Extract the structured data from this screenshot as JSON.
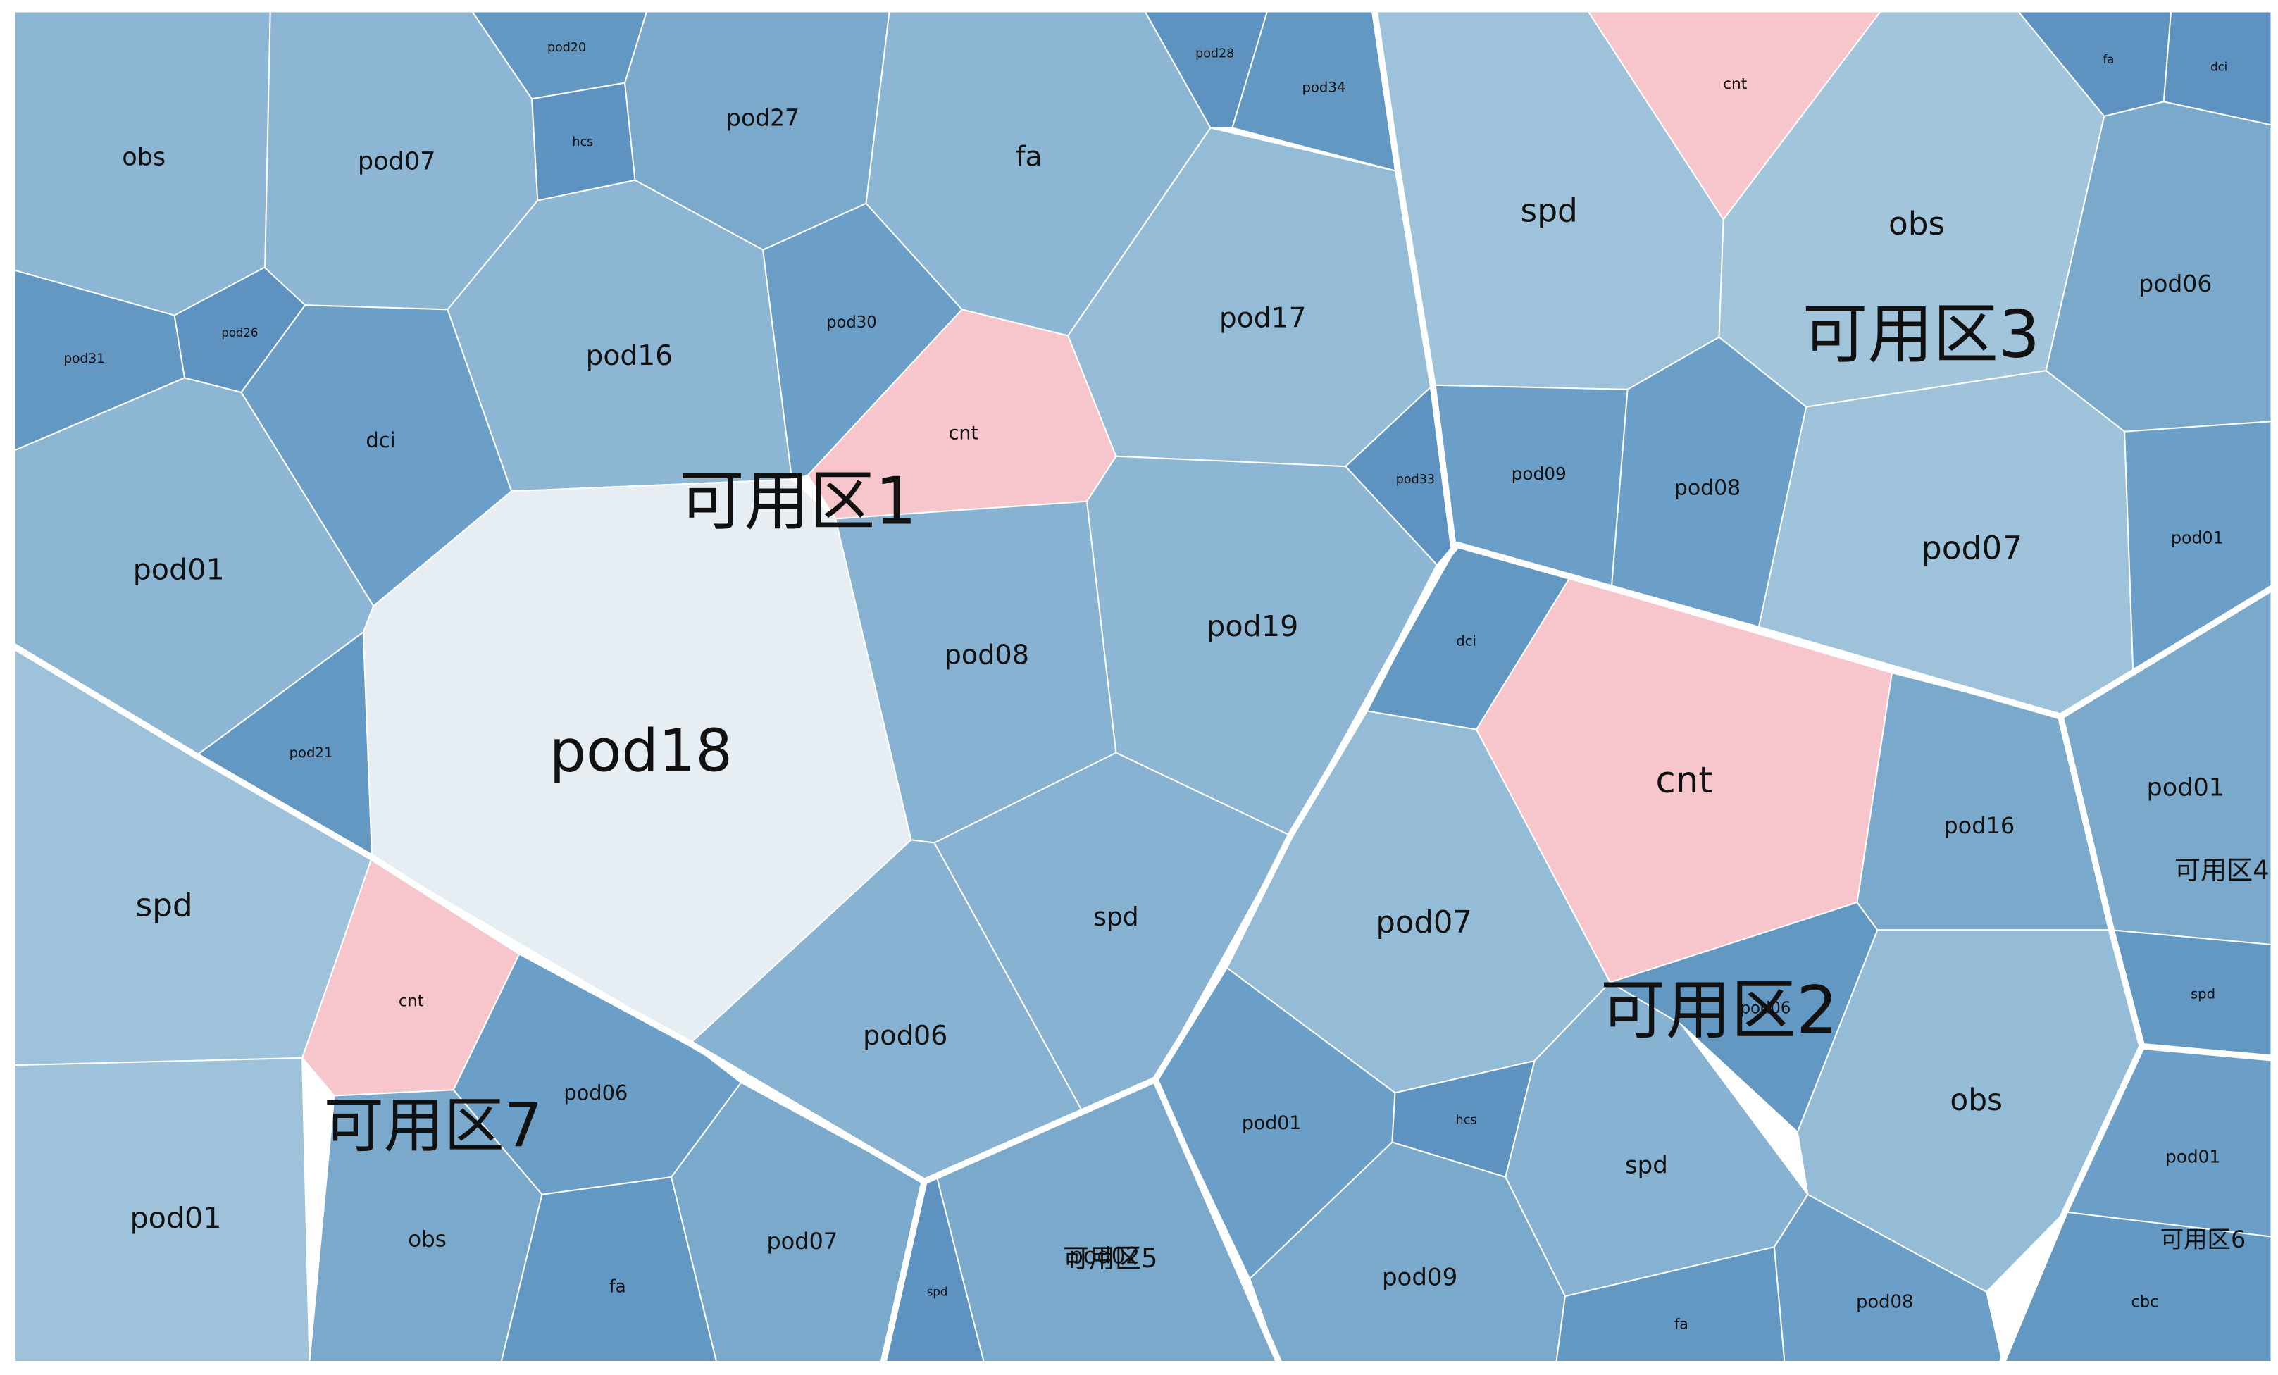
{
  "colors": {
    "alert": "#f7c6cd",
    "highlight": "#e6edf3",
    "blue_light": "#9dc2d9",
    "blue_mid": "#7aa9cb",
    "blue_dark": "#6398c3",
    "border": "#ffffff"
  },
  "zones": [
    {
      "name": "可用区1"
    },
    {
      "name": "可用区2"
    },
    {
      "name": "可用区3"
    },
    {
      "name": "可用区4"
    },
    {
      "name": "可用区5"
    },
    {
      "name": "可用区6"
    },
    {
      "name": "可用区7"
    }
  ],
  "cells": [
    {
      "label": "obs",
      "zone": "可用区1",
      "color": "#8db6d4"
    },
    {
      "label": "pod07",
      "zone": "可用区1",
      "color": "#8db6d4"
    },
    {
      "label": "pod20",
      "zone": "可用区1",
      "color": "#6398c3"
    },
    {
      "label": "hcs",
      "zone": "可用区1",
      "color": "#5e93c1"
    },
    {
      "label": "pod27",
      "zone": "可用区1",
      "color": "#7aa9cb"
    },
    {
      "label": "fa",
      "zone": "可用区1",
      "color": "#8db6d4"
    },
    {
      "label": "pod28",
      "zone": "可用区1",
      "color": "#5e93c1"
    },
    {
      "label": "pod34",
      "zone": "可用区1",
      "color": "#6398c3"
    },
    {
      "label": "pod31",
      "zone": "可用区1",
      "color": "#6398c3"
    },
    {
      "label": "pod26",
      "zone": "可用区1",
      "color": "#5e93c1"
    },
    {
      "label": "dci",
      "zone": "可用区1",
      "color": "#6b9fc7"
    },
    {
      "label": "pod16",
      "zone": "可用区1",
      "color": "#8db6d4"
    },
    {
      "label": "pod30",
      "zone": "可用区1",
      "color": "#6b9fc7"
    },
    {
      "label": "cnt",
      "zone": "可用区1",
      "color": "#f7c6cd"
    },
    {
      "label": "pod17",
      "zone": "可用区1",
      "color": "#95bcd7"
    },
    {
      "label": "pod33",
      "zone": "可用区1",
      "color": "#5e93c1"
    },
    {
      "label": "pod01",
      "zone": "可用区1",
      "color": "#8db6d4"
    },
    {
      "label": "pod21",
      "zone": "可用区1",
      "color": "#6398c3"
    },
    {
      "label": "pod18",
      "zone": "可用区1",
      "color": "#e6edf3"
    },
    {
      "label": "pod08",
      "zone": "可用区1",
      "color": "#87b2d2"
    },
    {
      "label": "pod19",
      "zone": "可用区1",
      "color": "#8db6d4"
    },
    {
      "label": "pod06",
      "zone": "可用区1",
      "color": "#87b2d2"
    },
    {
      "label": "spd",
      "zone": "可用区1",
      "color": "#87b2d2"
    },
    {
      "label": "spd",
      "zone": "可用区3",
      "color": "#9dc2d9"
    },
    {
      "label": "cnt",
      "zone": "可用区3",
      "color": "#f7c6cd"
    },
    {
      "label": "obs",
      "zone": "可用区3",
      "color": "#a2c5dc"
    },
    {
      "label": "fa",
      "zone": "可用区3",
      "color": "#5e93c1"
    },
    {
      "label": "dci",
      "zone": "可用区3",
      "color": "#5e93c1"
    },
    {
      "label": "pod06",
      "zone": "可用区3",
      "color": "#7aa9cb"
    },
    {
      "label": "pod09",
      "zone": "可用区3",
      "color": "#6b9fc7"
    },
    {
      "label": "pod08",
      "zone": "可用区3",
      "color": "#6b9fc7"
    },
    {
      "label": "pod07",
      "zone": "可用区3",
      "color": "#9dc2d9"
    },
    {
      "label": "pod01",
      "zone": "可用区3",
      "color": "#6b9fc7"
    },
    {
      "label": "dci",
      "zone": "可用区2",
      "color": "#6398c3"
    },
    {
      "label": "cnt",
      "zone": "可用区2",
      "color": "#f7c6cd"
    },
    {
      "label": "pod16",
      "zone": "可用区2",
      "color": "#7aa9cb"
    },
    {
      "label": "pod07",
      "zone": "可用区2",
      "color": "#95bcd7"
    },
    {
      "label": "pod06",
      "zone": "可用区2",
      "color": "#6398c3"
    },
    {
      "label": "obs",
      "zone": "可用区2",
      "color": "#95bcd7"
    },
    {
      "label": "pod01",
      "zone": "可用区2",
      "color": "#6b9fc7"
    },
    {
      "label": "hcs",
      "zone": "可用区2",
      "color": "#5e93c1"
    },
    {
      "label": "spd",
      "zone": "可用区2",
      "color": "#87b2d2"
    },
    {
      "label": "pod09",
      "zone": "可用区2",
      "color": "#7aa9cb"
    },
    {
      "label": "fa",
      "zone": "可用区2",
      "color": "#6398c3"
    },
    {
      "label": "pod08",
      "zone": "可用区2",
      "color": "#6b9fc7"
    },
    {
      "label": "pod01",
      "zone": "可用区4",
      "color": "#7aa9cb"
    },
    {
      "label": "spd",
      "zone": "可用区4",
      "color": "#6398c3"
    },
    {
      "label": "pod01",
      "zone": "可用区6",
      "color": "#6b9fc7"
    },
    {
      "label": "cbc",
      "zone": "可用区6",
      "color": "#6398c3"
    },
    {
      "label": "spd",
      "zone": "可用区7",
      "color": "#9dc2d9"
    },
    {
      "label": "cnt",
      "zone": "可用区7",
      "color": "#f7c6cd"
    },
    {
      "label": "pod01",
      "zone": "可用区7",
      "color": "#9dc2d9"
    },
    {
      "label": "pod06",
      "zone": "可用区7",
      "color": "#6b9fc7"
    },
    {
      "label": "obs",
      "zone": "可用区7",
      "color": "#7aa9cb"
    },
    {
      "label": "fa",
      "zone": "可用区7",
      "color": "#6398c3"
    },
    {
      "label": "pod07",
      "zone": "可用区7",
      "color": "#7aa9cb"
    },
    {
      "label": "spd",
      "zone": "可用区5",
      "color": "#5e93c1"
    },
    {
      "label": "pod02",
      "zone": "可用区5",
      "color": "#7aa9cb"
    }
  ]
}
